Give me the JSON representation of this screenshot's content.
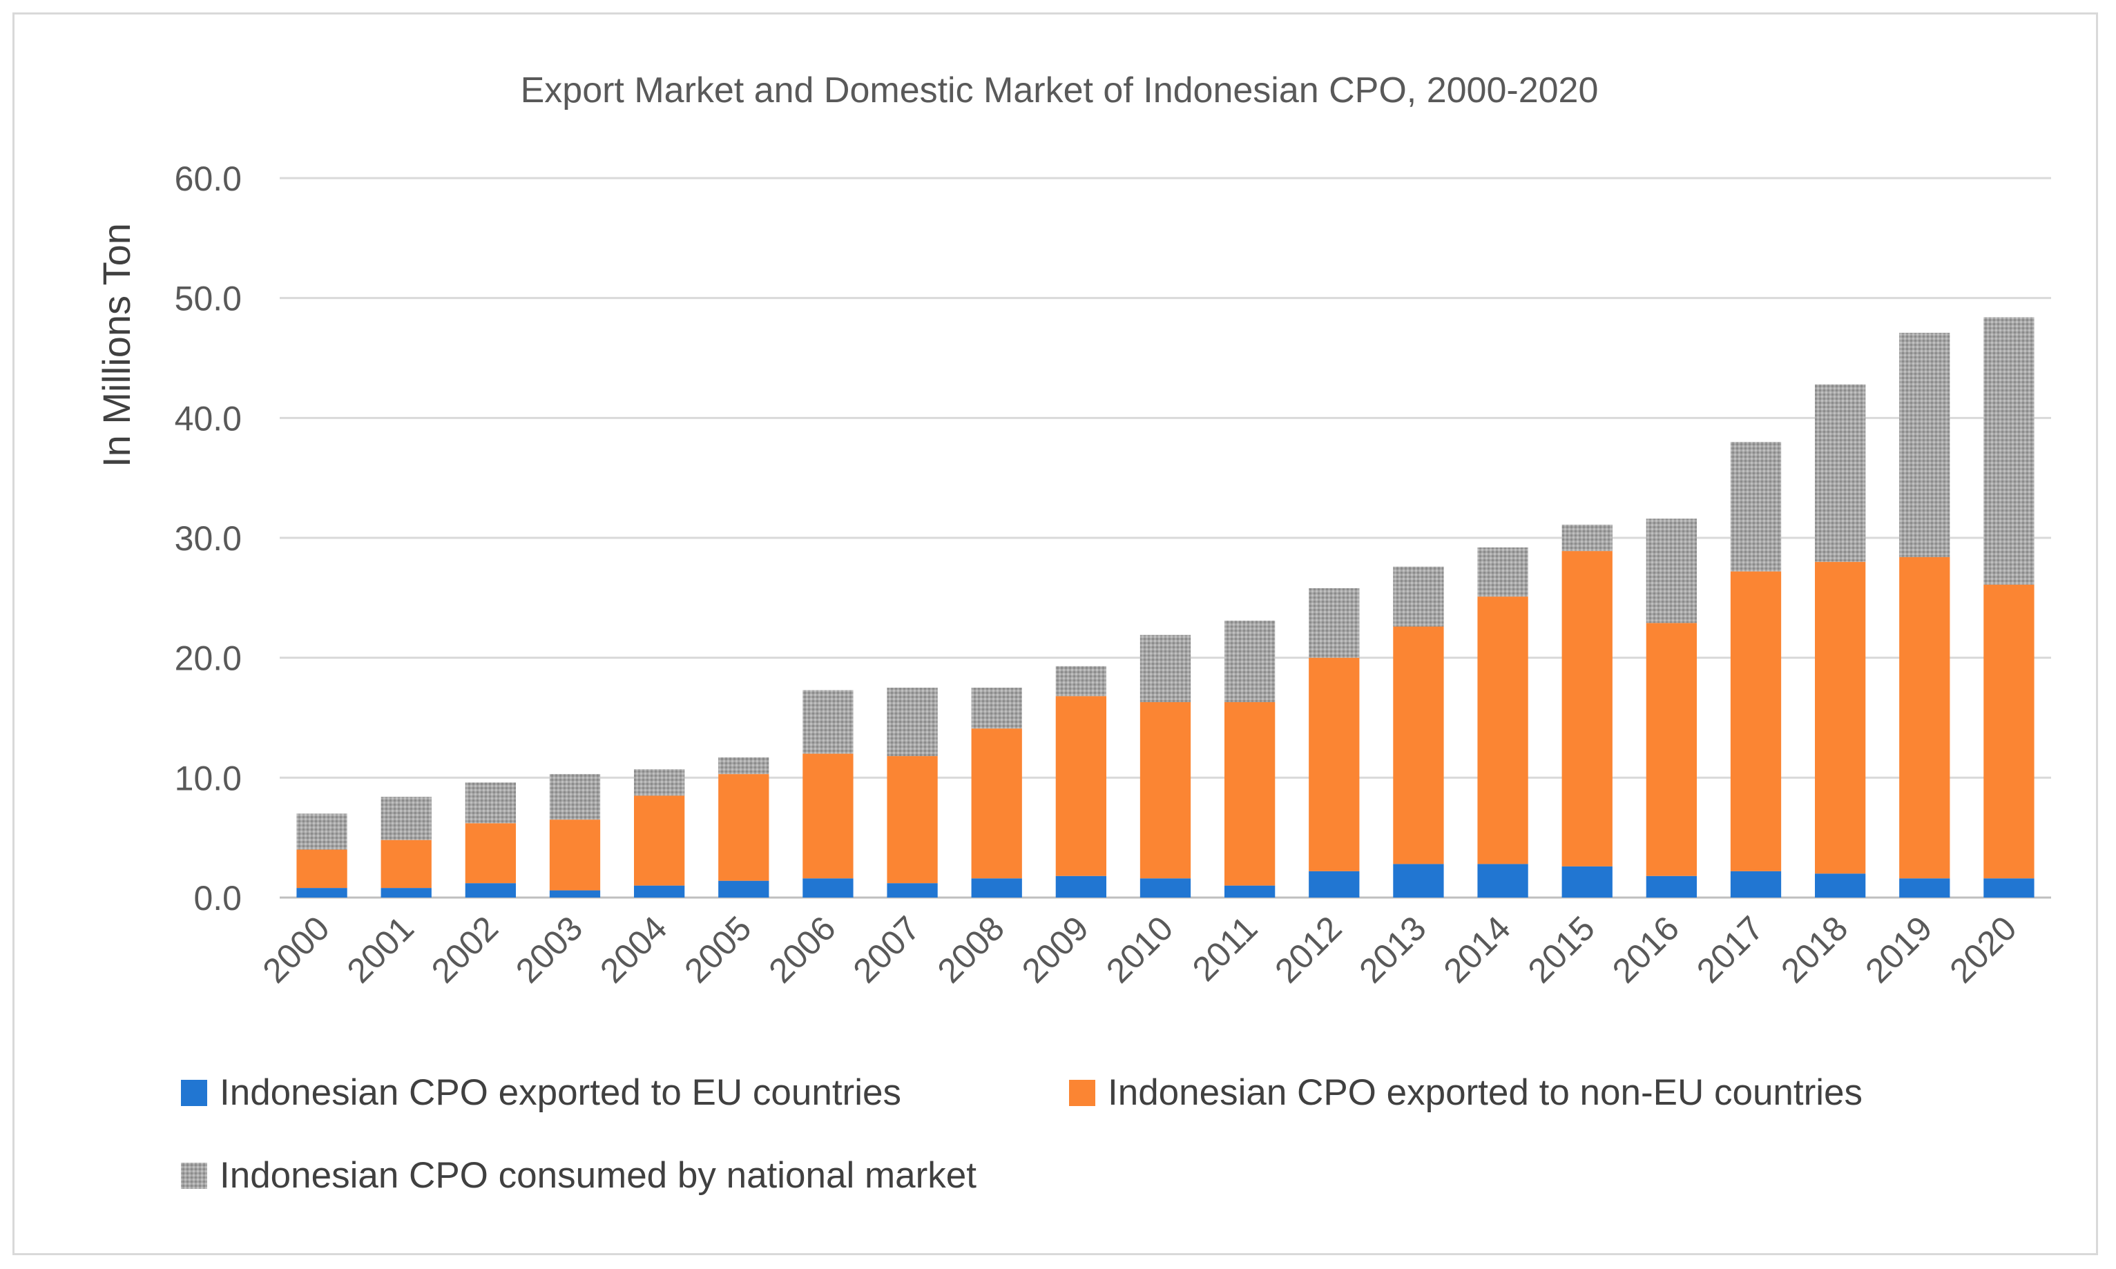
{
  "chart_data": {
    "type": "bar",
    "stacked": true,
    "title": "Export Market and Domestic Market of Indonesian CPO, 2000-2020",
    "xlabel": "",
    "ylabel": "In Millions Ton",
    "ylim": [
      0,
      60
    ],
    "yticks": [
      "0.0",
      "10.0",
      "20.0",
      "30.0",
      "40.0",
      "50.0",
      "60.0"
    ],
    "grid": true,
    "legend_position": "bottom",
    "categories": [
      "2000",
      "2001",
      "2002",
      "2003",
      "2004",
      "2005",
      "2006",
      "2007",
      "2008",
      "2009",
      "2010",
      "2011",
      "2012",
      "2013",
      "2014",
      "2015",
      "2016",
      "2017",
      "2018",
      "2019",
      "2020"
    ],
    "series": [
      {
        "name": "Indonesian CPO exported to EU countries",
        "color": "#2176d2",
        "pattern": "solid",
        "values": [
          0.8,
          0.8,
          1.2,
          0.6,
          1.0,
          1.4,
          1.6,
          1.2,
          1.6,
          1.8,
          1.6,
          1.0,
          2.2,
          2.8,
          2.8,
          2.6,
          1.8,
          2.2,
          2.0,
          1.6,
          1.6
        ]
      },
      {
        "name": "Indonesian CPO exported to non-EU countries",
        "color": "#fb8533",
        "pattern": "solid",
        "values": [
          3.2,
          4.0,
          5.0,
          5.9,
          7.5,
          8.9,
          10.4,
          10.6,
          12.5,
          15.0,
          14.7,
          15.3,
          17.8,
          19.8,
          22.3,
          26.3,
          21.1,
          25.0,
          26.0,
          26.8,
          24.5
        ]
      },
      {
        "name": "Indonesian CPO consumed by national market",
        "color": "#a6a6a6",
        "pattern": "dotted",
        "values": [
          3.0,
          3.6,
          3.4,
          3.8,
          2.2,
          1.4,
          5.3,
          5.7,
          3.4,
          2.5,
          5.6,
          6.8,
          5.8,
          5.0,
          4.1,
          2.2,
          8.7,
          10.8,
          14.8,
          18.7,
          22.3
        ]
      }
    ]
  }
}
